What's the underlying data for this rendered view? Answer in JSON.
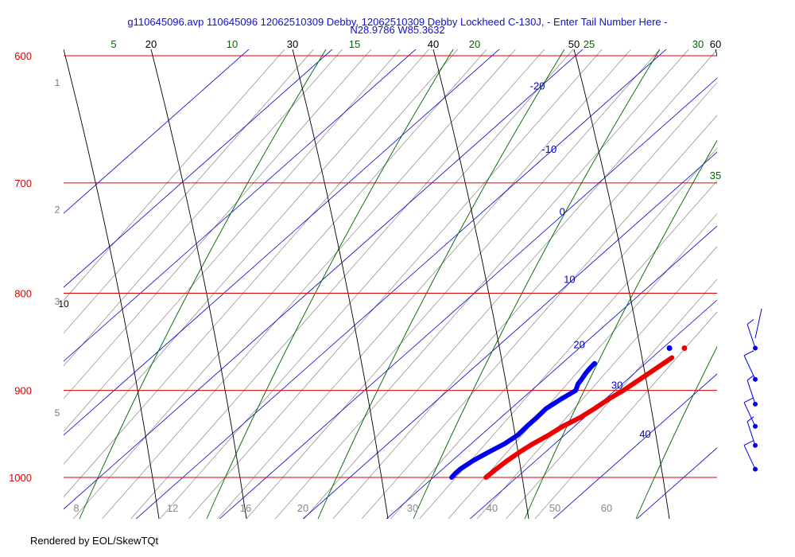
{
  "chart_data": {
    "type": "skew-t",
    "title_line1": "g110645096.avp 110645096 12062510309 Debby, 12062510309 Debby Lockheed C-130J, - Enter Tail Number Here -",
    "title_line2": "N28.9786 W85.3632",
    "credit": "Rendered by EOL/SkewTQt",
    "pressure_range_hpa": [
      1000,
      600
    ],
    "colors": {
      "isobar": "#dd0000",
      "isotherm": "#0000cc",
      "dry_adiabat": "#000000",
      "moist_adiabat": "#006600",
      "mixing_ratio": "#888888",
      "temperature": "#ee0000",
      "dewpoint": "#0000ee",
      "pressure_label": "#dd0000",
      "height_label": "#777777"
    },
    "isobars": [
      {
        "label": "600",
        "p": 600
      },
      {
        "label": "700",
        "p": 700
      },
      {
        "label": "800",
        "p": 800
      },
      {
        "label": "900",
        "p": 900
      },
      {
        "label": "1000",
        "p": 1000
      }
    ],
    "height_labels_km": [
      {
        "label": "1",
        "p": 620
      },
      {
        "label": "2",
        "p": 723
      },
      {
        "label": "3",
        "p": 808
      },
      {
        "label": "5",
        "p": 925
      }
    ],
    "isotherm_labels": [
      {
        "label": "-20",
        "at_temp": -20,
        "p": 625
      },
      {
        "label": "-10",
        "at_temp": -10,
        "p": 675
      },
      {
        "label": "0",
        "at_temp": 0,
        "p": 728
      },
      {
        "label": "10",
        "at_temp": 10,
        "p": 790
      },
      {
        "label": "20",
        "at_temp": 20,
        "p": 855
      },
      {
        "label": "30",
        "at_temp": 30,
        "p": 898
      },
      {
        "label": "40",
        "at_temp": 40,
        "p": 953
      }
    ],
    "dry_adiabat_labels": [
      "10",
      "20",
      "30",
      "40",
      "50",
      "60"
    ],
    "moist_adiabat_labels": [
      "5",
      "10",
      "15",
      "20",
      "25",
      "30",
      "35"
    ],
    "mixing_ratio_labels": [
      "8",
      "12",
      "16",
      "20",
      "30",
      "40",
      "50",
      "60"
    ],
    "temperature_profile": {
      "name": "Temperature",
      "p": [
        1000,
        990,
        980,
        970,
        960,
        950,
        940,
        930,
        920,
        910,
        900,
        890,
        880,
        870,
        865
      ],
      "t": [
        26.3,
        26.4,
        26.6,
        26.9,
        27.4,
        28.1,
        28.6,
        29.5,
        30.0,
        30.4,
        31.0,
        31.4,
        31.8,
        32.2,
        32.4
      ]
    },
    "dewpoint_profile": {
      "name": "Dewpoint",
      "p": [
        1000,
        995,
        990,
        980,
        970,
        960,
        950,
        940,
        930,
        920,
        910,
        900,
        893,
        888,
        882,
        876,
        871
      ],
      "t": [
        22.2,
        22.1,
        22.1,
        22.5,
        23.2,
        24.0,
        24.4,
        24.3,
        24.3,
        24.2,
        24.7,
        25.3,
        24.7,
        24.5,
        24.2,
        24.0,
        23.9
      ]
    },
    "surface_points": [
      {
        "series": "Temperature",
        "p": 855,
        "t": 32.6
      },
      {
        "series": "Dewpoint",
        "p": 855,
        "t": 30.8
      }
    ],
    "wind_barbs_p": [
      855,
      888,
      915,
      940,
      962,
      990
    ]
  }
}
